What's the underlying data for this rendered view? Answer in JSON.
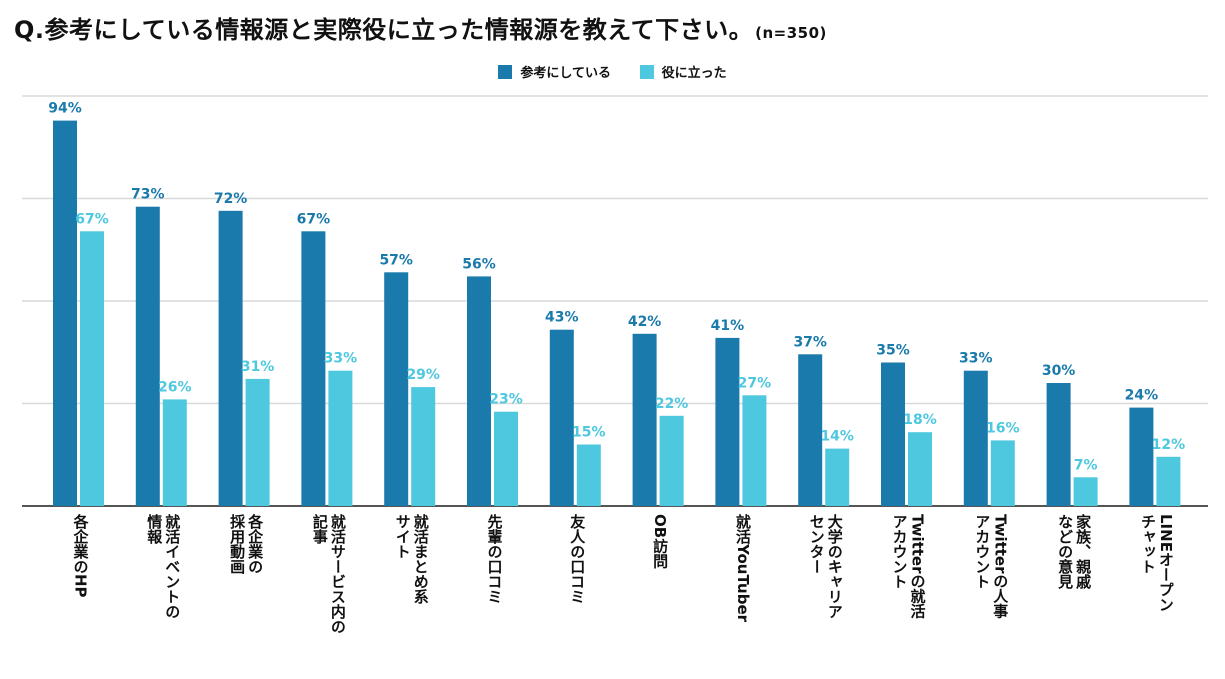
{
  "title": "Q.参考にしている情報源と実際役に立った情報源を教えて下さい。",
  "sample_note": "(n=350)",
  "colors": {
    "series1": "#1a7aab",
    "series2": "#4ec8df",
    "grid": "#d9d9d9",
    "axis": "#555555"
  },
  "chart_data": {
    "type": "bar",
    "title": "Q.参考にしている情報源と実際役に立った情報源を教えて下さい。",
    "xlabel": "",
    "ylabel": "",
    "ylim": [
      0,
      100
    ],
    "grid": true,
    "legend_position": "top-center",
    "categories": [
      "各企業のHP",
      "就活イベントの\n情報",
      "各企業の\n採用動画",
      "就活サービス内の\n記事",
      "就活まとめ系\nサイト",
      "先輩の口コミ",
      "友人の口コミ",
      "OB訪問",
      "就活YouTuber",
      "大学のキャリア\nセンター",
      "Twitterの就活\nアカウント",
      "Twitterの人事\nアカウント",
      "家族、親戚\nなどの意見",
      "LINEオープン\nチャット"
    ],
    "series": [
      {
        "name": "参考にしている",
        "values": [
          94,
          73,
          72,
          67,
          57,
          56,
          43,
          42,
          41,
          37,
          35,
          33,
          30,
          24
        ]
      },
      {
        "name": "役に立った",
        "values": [
          67,
          26,
          31,
          33,
          29,
          23,
          15,
          22,
          27,
          14,
          18,
          16,
          7,
          12
        ]
      }
    ]
  }
}
